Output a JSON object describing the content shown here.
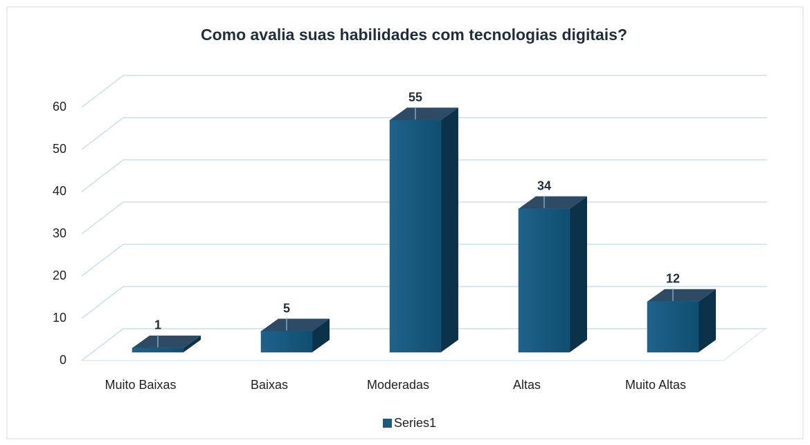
{
  "chart_data": {
    "type": "bar3d",
    "title": "Como avalia suas habilidades com tecnologias digitais?",
    "categories": [
      "Muito Baixas",
      "Baixas",
      "Moderadas",
      "Altas",
      "Muito Altas"
    ],
    "series": [
      {
        "name": "Series1",
        "color": "#1a5b80",
        "values": [
          1,
          5,
          55,
          34,
          12
        ]
      }
    ],
    "ylim": [
      0,
      60
    ],
    "yticks": [
      0,
      10,
      20,
      30,
      40,
      50,
      60
    ],
    "grid": true,
    "legend": "bottom"
  }
}
